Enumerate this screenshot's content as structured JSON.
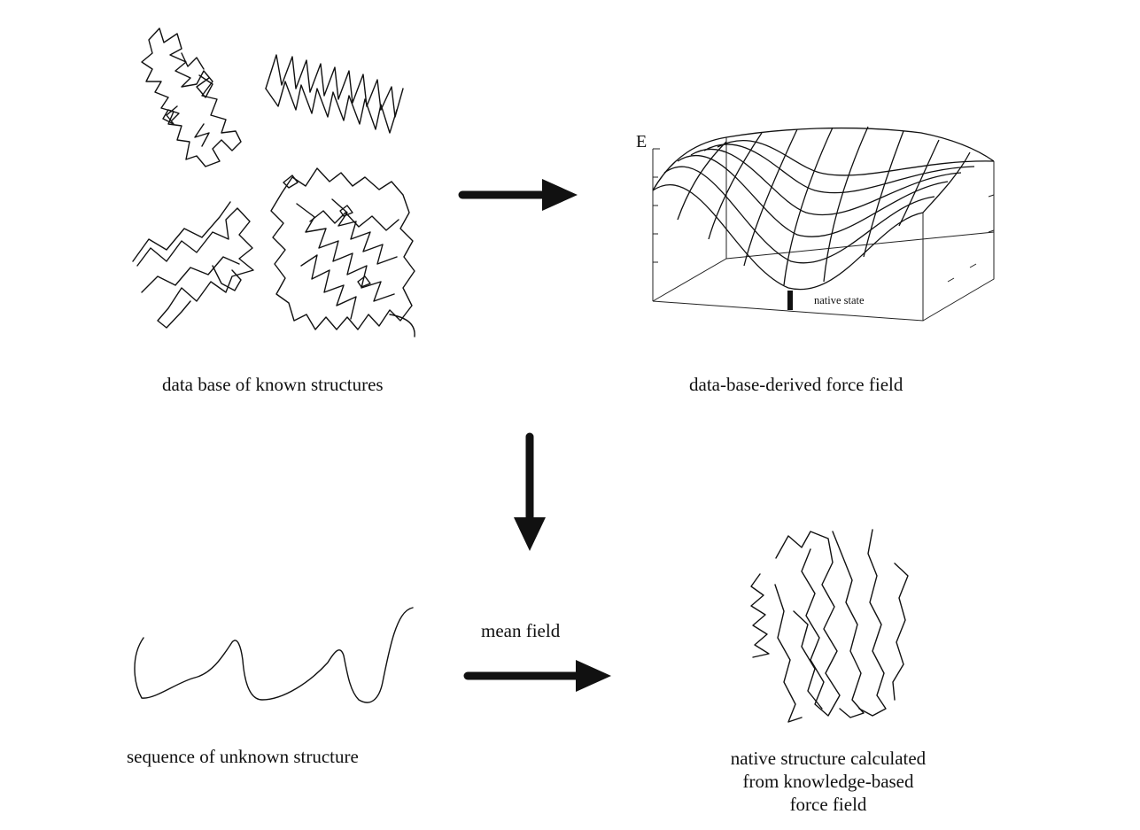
{
  "panels": {
    "database": {
      "caption": "data base of known structures"
    },
    "force_field": {
      "caption": "data-base-derived force field",
      "axis_label": "E",
      "marker_label": "native state"
    },
    "sequence": {
      "caption": "sequence of unknown structure"
    },
    "native": {
      "caption_lines": [
        "native structure calculated",
        "from knowledge-based",
        "force field"
      ]
    }
  },
  "arrows": {
    "mean_field_label": "mean field"
  }
}
